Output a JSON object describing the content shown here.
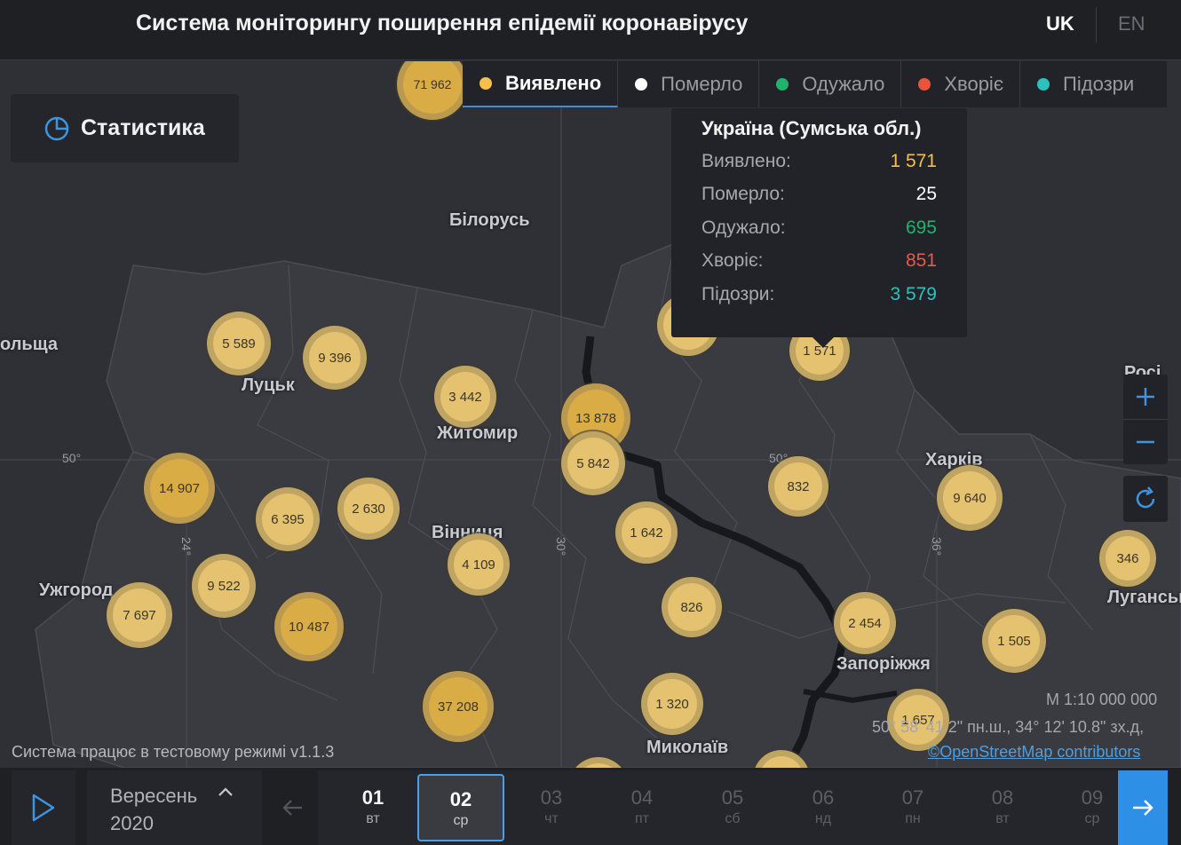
{
  "header": {
    "title": "Система моніторингу поширення епідемії коронавірусу",
    "lang_uk": "UK",
    "lang_en": "EN"
  },
  "stats_button": {
    "label": "Статистика",
    "icon": "pie-chart-icon"
  },
  "legend": {
    "tabs": [
      {
        "label": "Виявлено",
        "color": "#f5c04a",
        "active": true
      },
      {
        "label": "Померло",
        "color": "#ffffff"
      },
      {
        "label": "Одужало",
        "color": "#1fb36e"
      },
      {
        "label": "Хворіє",
        "color": "#e8553b"
      },
      {
        "label": "Підозри",
        "color": "#2cc1bd"
      }
    ]
  },
  "tooltip": {
    "title": "Україна (Сумська обл.)",
    "rows": [
      {
        "label": "Виявлено:",
        "value": "1 571",
        "color": "#f5c04a"
      },
      {
        "label": "Померло:",
        "value": "25",
        "color": "#ffffff"
      },
      {
        "label": "Одужало:",
        "value": "695",
        "color": "#1fb36e"
      },
      {
        "label": "Хворіє:",
        "value": "851",
        "color": "#e35a4f"
      },
      {
        "label": "Підозри:",
        "value": "3 579",
        "color": "#2cc1bd"
      }
    ]
  },
  "map": {
    "labels": {
      "belarus": "Білорусь",
      "poland": "ольща",
      "lutsk": "Луцьк",
      "zhytomyr": "Житомир",
      "vinnytsia": "Вінниця",
      "uzhhorod": "Ужгород",
      "kharkiv": "Харків",
      "zaporizhzhia": "Запоріжжя",
      "mykolaiv": "Миколаїв",
      "luhansk": "Луганськ",
      "russia": "Росі"
    },
    "grid": {
      "lat_left": "50°",
      "lat_mid": "50°",
      "lon_24": "24°",
      "lon_30": "30°",
      "lon_36": "36°"
    },
    "clusters": [
      "71 962",
      "5 589",
      "9 396",
      "3 442",
      "13 878",
      "5 842",
      "1 571",
      "14 907",
      "6 395",
      "2 630",
      "4 109",
      "1 642",
      "832",
      "9 640",
      "346",
      "9 522",
      "7 697",
      "10 487",
      "826",
      "2 454",
      "1 505",
      "37 208",
      "1 320",
      "1 657"
    ],
    "scale": "M 1:10 000 000",
    "coords": "50° 58' 41.2\" пн.ш., 34° 12' 10.8\" зх.д,",
    "osm": "©OpenStreetMap contributors",
    "test_mode": "Система працює в тестовому режимі v1.1.3"
  },
  "timeline": {
    "month": "Вересень",
    "year": "2020",
    "days": [
      {
        "num": "01",
        "wd": "вт",
        "state": "past"
      },
      {
        "num": "02",
        "wd": "ср",
        "state": "selected"
      },
      {
        "num": "03",
        "wd": "чт",
        "state": "future"
      },
      {
        "num": "04",
        "wd": "пт",
        "state": "future"
      },
      {
        "num": "05",
        "wd": "сб",
        "state": "future"
      },
      {
        "num": "06",
        "wd": "нд",
        "state": "future"
      },
      {
        "num": "07",
        "wd": "пн",
        "state": "future"
      },
      {
        "num": "08",
        "wd": "вт",
        "state": "future"
      },
      {
        "num": "09",
        "wd": "ср",
        "state": "future"
      }
    ]
  }
}
